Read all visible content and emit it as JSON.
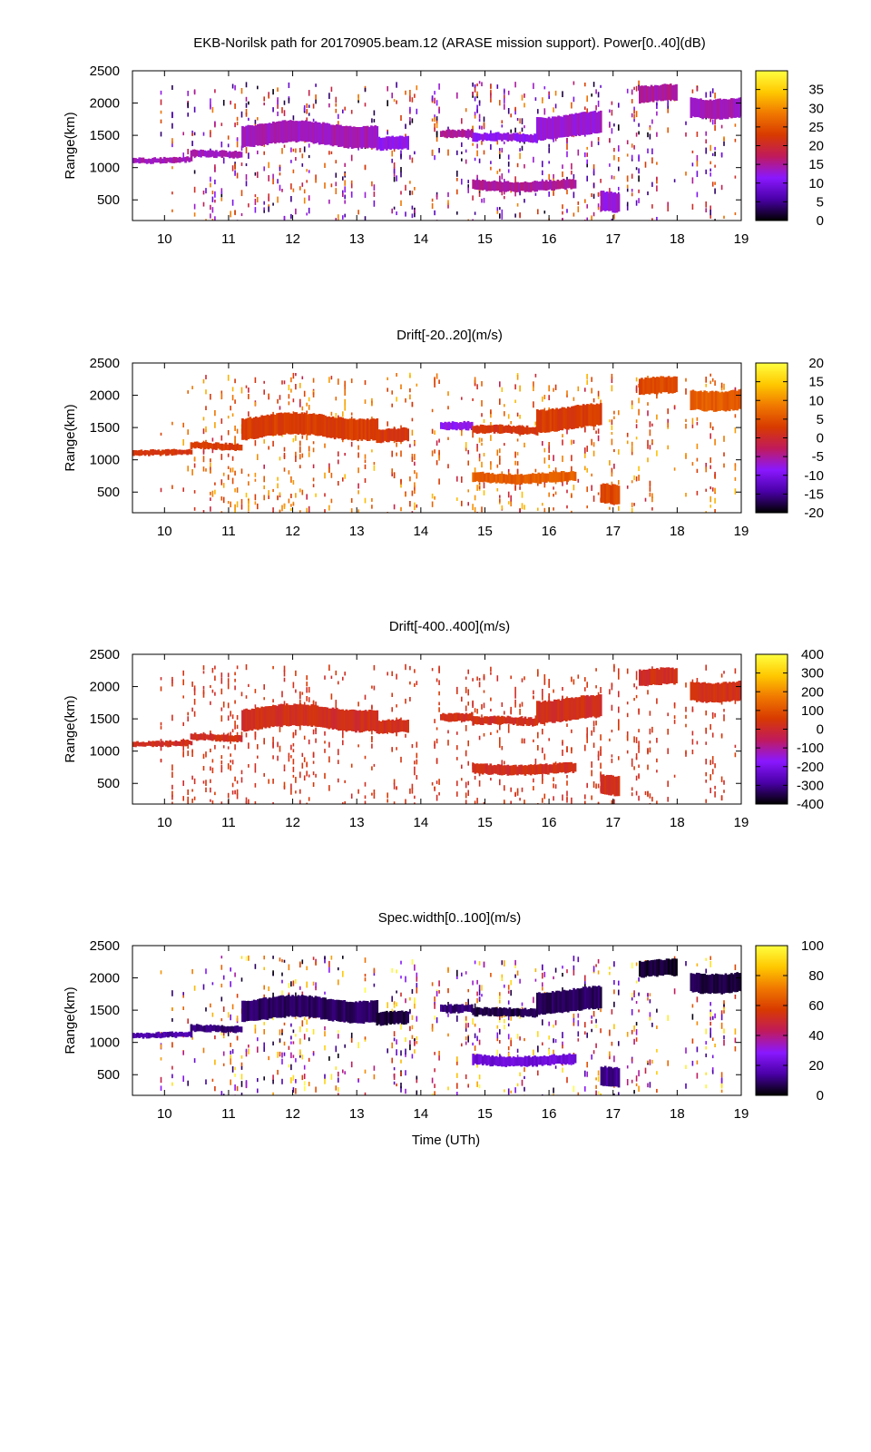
{
  "figure": {
    "background": "#ffffff",
    "xlabel": "Time (UTh)",
    "ylabel": "Range(km)"
  },
  "chart_data": [
    {
      "type": "heatmap",
      "title": "EKB-Norilsk path for 20170905.beam.12 (ARASE mission support). Power[0..40](dB)",
      "xlabel": "",
      "ylabel": "Range(km)",
      "xlim": [
        9.5,
        19
      ],
      "ylim": [
        180,
        2500
      ],
      "x_ticks": [
        "10",
        "11",
        "12",
        "13",
        "14",
        "15",
        "16",
        "17",
        "18",
        "19"
      ],
      "y_ticks": [
        "500",
        "1000",
        "1500",
        "2000",
        "2500"
      ],
      "colorbar": {
        "range": [
          0,
          40
        ],
        "ticks": [
          "0",
          "5",
          "10",
          "15",
          "20",
          "25",
          "30",
          "35"
        ],
        "colors": [
          "#000000",
          "#4a00a8",
          "#8a18ff",
          "#c01a5c",
          "#d83a00",
          "#f07800",
          "#ffc800",
          "#ffff40"
        ]
      },
      "bands": [
        {
          "x": [
            9.5,
            10.4
          ],
          "range": [
            1080,
            1160
          ],
          "value": 14
        },
        {
          "x": [
            10.4,
            11.2
          ],
          "range": [
            1160,
            1260
          ],
          "value": 14
        },
        {
          "x": [
            11.2,
            13.3
          ],
          "range": [
            1350,
            1680
          ],
          "value": 14
        },
        {
          "x": [
            13.3,
            13.8
          ],
          "range": [
            1260,
            1460
          ],
          "value": 12
        },
        {
          "x": [
            14.3,
            14.8
          ],
          "range": [
            1480,
            1600
          ],
          "value": 15
        },
        {
          "x": [
            14.8,
            15.8
          ],
          "range": [
            1400,
            1520
          ],
          "value": 12
        },
        {
          "x": [
            15.8,
            16.8
          ],
          "range": [
            1480,
            1820
          ],
          "value": 13
        },
        {
          "x": [
            14.8,
            16.4
          ],
          "range": [
            650,
            800
          ],
          "value": 15
        },
        {
          "x": [
            16.8,
            17.1
          ],
          "range": [
            350,
            650
          ],
          "value": 13
        },
        {
          "x": [
            17.4,
            18.0
          ],
          "range": [
            2000,
            2250
          ],
          "value": 15
        },
        {
          "x": [
            18.2,
            19.0
          ],
          "range": [
            1800,
            2100
          ],
          "value": 14
        }
      ],
      "scatter_value_range": [
        0,
        30
      ]
    },
    {
      "type": "heatmap",
      "title": "Drift[-20..20](m/s)",
      "xlabel": "",
      "ylabel": "Range(km)",
      "xlim": [
        9.5,
        19
      ],
      "ylim": [
        180,
        2500
      ],
      "x_ticks": [
        "10",
        "11",
        "12",
        "13",
        "14",
        "15",
        "16",
        "17",
        "18",
        "19"
      ],
      "y_ticks": [
        "500",
        "1000",
        "1500",
        "2000",
        "2500"
      ],
      "colorbar": {
        "range": [
          -20,
          20
        ],
        "ticks": [
          "-20",
          "-15",
          "-10",
          "-5",
          "0",
          "5",
          "10",
          "15",
          "20"
        ],
        "colors": [
          "#000000",
          "#4a00a8",
          "#8a18ff",
          "#c01a5c",
          "#d83a00",
          "#f07800",
          "#ffc800",
          "#ffff40"
        ]
      },
      "bands": [
        {
          "x": [
            9.5,
            10.4
          ],
          "range": [
            1080,
            1160
          ],
          "value": 2
        },
        {
          "x": [
            10.4,
            11.2
          ],
          "range": [
            1160,
            1260
          ],
          "value": 3
        },
        {
          "x": [
            11.2,
            13.3
          ],
          "range": [
            1350,
            1680
          ],
          "value": 3
        },
        {
          "x": [
            13.3,
            13.8
          ],
          "range": [
            1260,
            1460
          ],
          "value": 2
        },
        {
          "x": [
            14.3,
            14.8
          ],
          "range": [
            1480,
            1600
          ],
          "value": -8
        },
        {
          "x": [
            14.8,
            15.8
          ],
          "range": [
            1400,
            1520
          ],
          "value": 2
        },
        {
          "x": [
            15.8,
            16.8
          ],
          "range": [
            1480,
            1820
          ],
          "value": 3
        },
        {
          "x": [
            14.8,
            16.4
          ],
          "range": [
            650,
            800
          ],
          "value": 6
        },
        {
          "x": [
            16.8,
            17.1
          ],
          "range": [
            350,
            650
          ],
          "value": 4
        },
        {
          "x": [
            17.4,
            18.0
          ],
          "range": [
            2000,
            2250
          ],
          "value": 4
        },
        {
          "x": [
            18.2,
            19.0
          ],
          "range": [
            1800,
            2100
          ],
          "value": 6
        }
      ],
      "scatter_value_range": [
        -2,
        14
      ]
    },
    {
      "type": "heatmap",
      "title": "Drift[-400..400](m/s)",
      "xlabel": "",
      "ylabel": "Range(km)",
      "xlim": [
        9.5,
        19
      ],
      "ylim": [
        180,
        2500
      ],
      "x_ticks": [
        "10",
        "11",
        "12",
        "13",
        "14",
        "15",
        "16",
        "17",
        "18",
        "19"
      ],
      "y_ticks": [
        "500",
        "1000",
        "1500",
        "2000",
        "2500"
      ],
      "colorbar": {
        "range": [
          -400,
          400
        ],
        "ticks": [
          "-400",
          "-300",
          "-200",
          "-100",
          "0",
          "100",
          "200",
          "300",
          "400"
        ],
        "colors": [
          "#000000",
          "#4a00a8",
          "#8a18ff",
          "#c01a5c",
          "#d83a00",
          "#f07800",
          "#ffc800",
          "#ffff40"
        ]
      },
      "bands": [
        {
          "x": [
            9.5,
            10.4
          ],
          "range": [
            1080,
            1160
          ],
          "value": 20
        },
        {
          "x": [
            10.4,
            11.2
          ],
          "range": [
            1160,
            1260
          ],
          "value": 20
        },
        {
          "x": [
            11.2,
            13.3
          ],
          "range": [
            1350,
            1680
          ],
          "value": 20
        },
        {
          "x": [
            13.3,
            13.8
          ],
          "range": [
            1260,
            1460
          ],
          "value": 20
        },
        {
          "x": [
            14.3,
            14.8
          ],
          "range": [
            1480,
            1600
          ],
          "value": 20
        },
        {
          "x": [
            14.8,
            15.8
          ],
          "range": [
            1400,
            1520
          ],
          "value": 20
        },
        {
          "x": [
            15.8,
            16.8
          ],
          "range": [
            1480,
            1820
          ],
          "value": 20
        },
        {
          "x": [
            14.8,
            16.4
          ],
          "range": [
            650,
            800
          ],
          "value": 20
        },
        {
          "x": [
            16.8,
            17.1
          ],
          "range": [
            350,
            650
          ],
          "value": 20
        },
        {
          "x": [
            17.4,
            18.0
          ],
          "range": [
            2000,
            2250
          ],
          "value": 20
        },
        {
          "x": [
            18.2,
            19.0
          ],
          "range": [
            1800,
            2100
          ],
          "value": 25
        }
      ],
      "scatter_value_range": [
        0,
        60
      ]
    },
    {
      "type": "heatmap",
      "title": "Spec.width[0..100](m/s)",
      "xlabel": "Time (UTh)",
      "ylabel": "Range(km)",
      "xlim": [
        9.5,
        19
      ],
      "ylim": [
        180,
        2500
      ],
      "x_ticks": [
        "10",
        "11",
        "12",
        "13",
        "14",
        "15",
        "16",
        "17",
        "18",
        "19"
      ],
      "y_ticks": [
        "500",
        "1000",
        "1500",
        "2000",
        "2500"
      ],
      "colorbar": {
        "range": [
          0,
          100
        ],
        "ticks": [
          "0",
          "20",
          "40",
          "60",
          "80",
          "100"
        ],
        "colors": [
          "#000000",
          "#4a00a8",
          "#8a18ff",
          "#c01a5c",
          "#d83a00",
          "#f07800",
          "#ffc800",
          "#ffff40"
        ]
      },
      "bands": [
        {
          "x": [
            9.5,
            10.4
          ],
          "range": [
            1080,
            1160
          ],
          "value": 15
        },
        {
          "x": [
            10.4,
            11.2
          ],
          "range": [
            1160,
            1260
          ],
          "value": 10
        },
        {
          "x": [
            11.2,
            13.3
          ],
          "range": [
            1350,
            1680
          ],
          "value": 8
        },
        {
          "x": [
            13.3,
            13.8
          ],
          "range": [
            1260,
            1460
          ],
          "value": 5
        },
        {
          "x": [
            14.3,
            14.8
          ],
          "range": [
            1480,
            1600
          ],
          "value": 10
        },
        {
          "x": [
            14.8,
            15.8
          ],
          "range": [
            1400,
            1520
          ],
          "value": 6
        },
        {
          "x": [
            15.8,
            16.8
          ],
          "range": [
            1480,
            1820
          ],
          "value": 8
        },
        {
          "x": [
            14.8,
            16.4
          ],
          "range": [
            650,
            800
          ],
          "value": 22
        },
        {
          "x": [
            16.8,
            17.1
          ],
          "range": [
            350,
            650
          ],
          "value": 12
        },
        {
          "x": [
            17.4,
            18.0
          ],
          "range": [
            2000,
            2250
          ],
          "value": 4
        },
        {
          "x": [
            18.2,
            19.0
          ],
          "range": [
            1800,
            2100
          ],
          "value": 6
        }
      ],
      "scatter_value_range": [
        0,
        100
      ]
    }
  ]
}
